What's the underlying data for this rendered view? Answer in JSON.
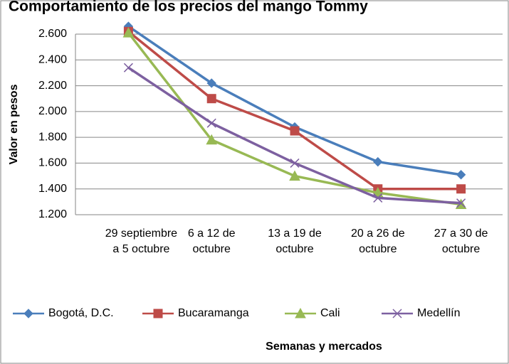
{
  "chart_data": {
    "type": "line",
    "title": "Comportamiento de los precios del mango Tommy",
    "ylabel": "Valor en pesos",
    "xlabel": "Semanas y mercados",
    "categories": [
      "29 septiembre a 5 octubre",
      "6 a 12 de octubre",
      "13 a 19 de octubre",
      "20 a 26 de octubre",
      "27 a 30 de octubre"
    ],
    "series": [
      {
        "name": "Bogotá, D.C.",
        "color": "#4a7ebb",
        "marker": "diamond",
        "values": [
          2660,
          2220,
          1880,
          1610,
          1510
        ]
      },
      {
        "name": "Bucaramanga",
        "color": "#be4b48",
        "marker": "square",
        "values": [
          2620,
          2100,
          1850,
          1400,
          1400
        ]
      },
      {
        "name": "Cali",
        "color": "#98b954",
        "marker": "triangle",
        "values": [
          2610,
          1780,
          1500,
          1370,
          1280
        ]
      },
      {
        "name": "Medellín",
        "color": "#7d60a0",
        "marker": "x",
        "values": [
          2340,
          1910,
          1600,
          1330,
          1290
        ]
      }
    ],
    "ylim": [
      1200,
      2600
    ],
    "yticks": [
      {
        "value": 1200,
        "label": "1.200"
      },
      {
        "value": 1400,
        "label": "1.400"
      },
      {
        "value": 1600,
        "label": "1.600"
      },
      {
        "value": 1800,
        "label": "1.800"
      },
      {
        "value": 2000,
        "label": "2.000"
      },
      {
        "value": 2200,
        "label": "2.200"
      },
      {
        "value": 2400,
        "label": "2.400"
      },
      {
        "value": 2600,
        "label": "2.600"
      }
    ],
    "grid": true,
    "legend": "bottom"
  }
}
